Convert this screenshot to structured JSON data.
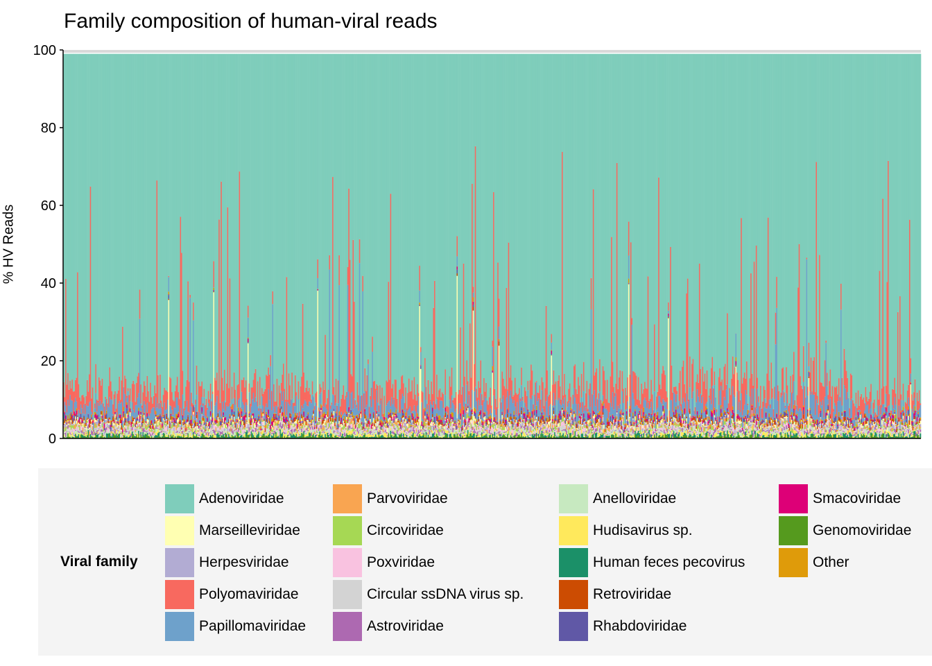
{
  "chart_data": {
    "type": "bar",
    "title": "Family composition of human-viral reads",
    "xlabel": "",
    "ylabel": "% HV Reads",
    "ylim": [
      0,
      100
    ],
    "yticks": [
      0,
      20,
      40,
      60,
      80,
      100
    ],
    "grid": false,
    "legend_title": "Viral family",
    "legend_position": "bottom",
    "stacked": true,
    "n_samples_approx": 800,
    "note_values": "per-sample stacks; series values below are approximate median percentages across samples",
    "series": [
      {
        "name": "Adenoviridae",
        "color": "#7fcdbb",
        "median": 88
      },
      {
        "name": "Marseilleviridae",
        "color": "#ffffb2",
        "median": 0.4
      },
      {
        "name": "Herpesviridae",
        "color": "#b2acd3",
        "median": 0.4
      },
      {
        "name": "Polyomaviridae",
        "color": "#f8695f",
        "median": 4
      },
      {
        "name": "Papillomaviridae",
        "color": "#6ea1cb",
        "median": 2
      },
      {
        "name": "Parvoviridae",
        "color": "#f9a551",
        "median": 0.3
      },
      {
        "name": "Circoviridae",
        "color": "#a6d854",
        "median": 0.3
      },
      {
        "name": "Poxviridae",
        "color": "#f9c2e0",
        "median": 0.2
      },
      {
        "name": "Circular ssDNA virus sp.",
        "color": "#d3d3d3",
        "median": 0.2
      },
      {
        "name": "Astroviridae",
        "color": "#ad69b1",
        "median": 0.1
      },
      {
        "name": "Anelloviridae",
        "color": "#c7e9c0",
        "median": 0.3
      },
      {
        "name": "Hudisavirus sp.",
        "color": "#ffe95c",
        "median": 0.3
      },
      {
        "name": "Human feces pecovirus",
        "color": "#1b9068",
        "median": 0.3
      },
      {
        "name": "Retroviridae",
        "color": "#cc4c02",
        "median": 0.1
      },
      {
        "name": "Rhabdoviridae",
        "color": "#6058a6",
        "median": 0.1
      },
      {
        "name": "Smacoviridae",
        "color": "#dd0077",
        "median": 0.1
      },
      {
        "name": "Genomoviridae",
        "color": "#559a1e",
        "median": 0.1
      },
      {
        "name": "Other",
        "color": "#df9b0a",
        "median": 0.2
      }
    ]
  }
}
